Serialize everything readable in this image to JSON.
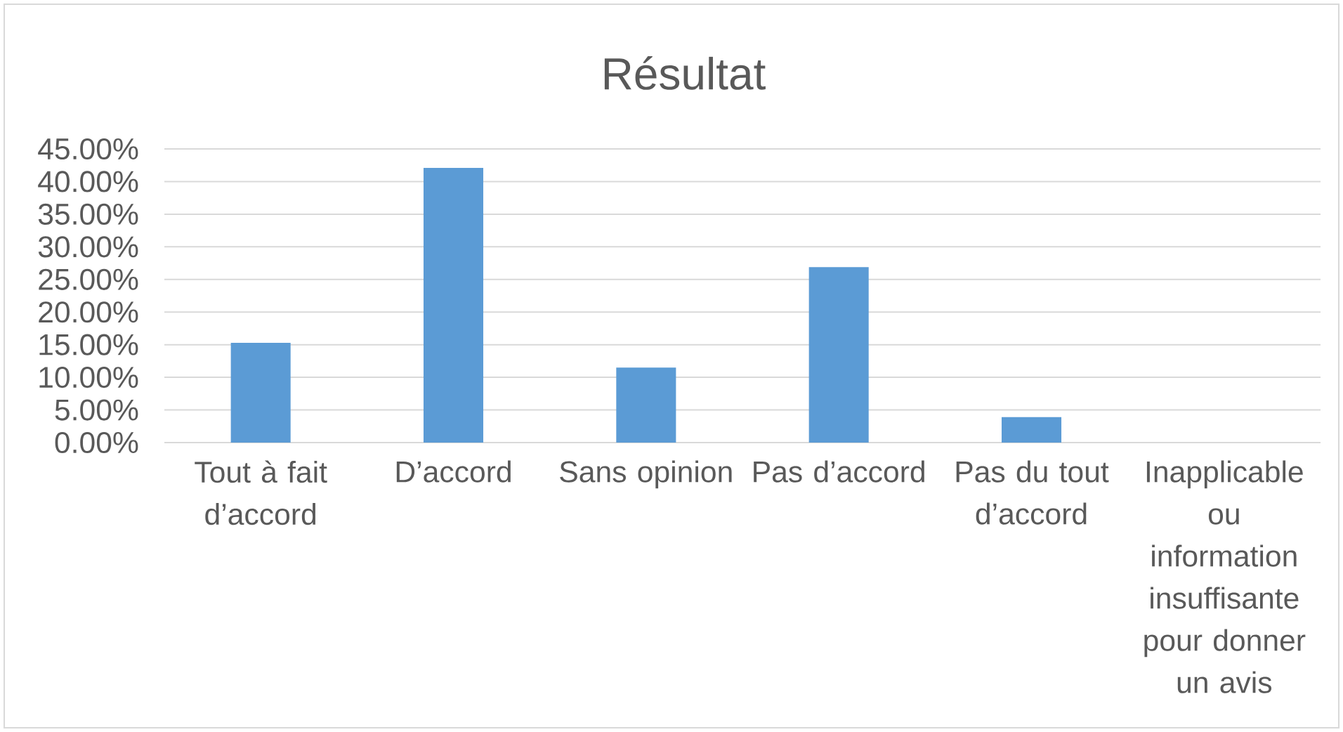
{
  "chart_data": {
    "type": "bar",
    "title": "Résultat",
    "categories": [
      "Tout à fait d’accord",
      "D’accord",
      "Sans opinion",
      "Pas d’accord",
      "Pas du tout d’accord",
      "Inapplicable ou information insuffisante pour donner un avis"
    ],
    "values": [
      15.3,
      42.1,
      11.5,
      26.9,
      3.9,
      0
    ],
    "color": "#5b9bd5",
    "ylim": [
      0,
      45
    ],
    "yticks": [
      {
        "value": 0,
        "label": "0.00%"
      },
      {
        "value": 5,
        "label": "5.00%"
      },
      {
        "value": 10,
        "label": "10.00%"
      },
      {
        "value": 15,
        "label": "15.00%"
      },
      {
        "value": 20,
        "label": "20.00%"
      },
      {
        "value": 25,
        "label": "25.00%"
      },
      {
        "value": 30,
        "label": "30.00%"
      },
      {
        "value": 35,
        "label": "35.00%"
      },
      {
        "value": 40,
        "label": "40.00%"
      },
      {
        "value": 45,
        "label": "45.00%"
      }
    ],
    "grid": "y"
  }
}
